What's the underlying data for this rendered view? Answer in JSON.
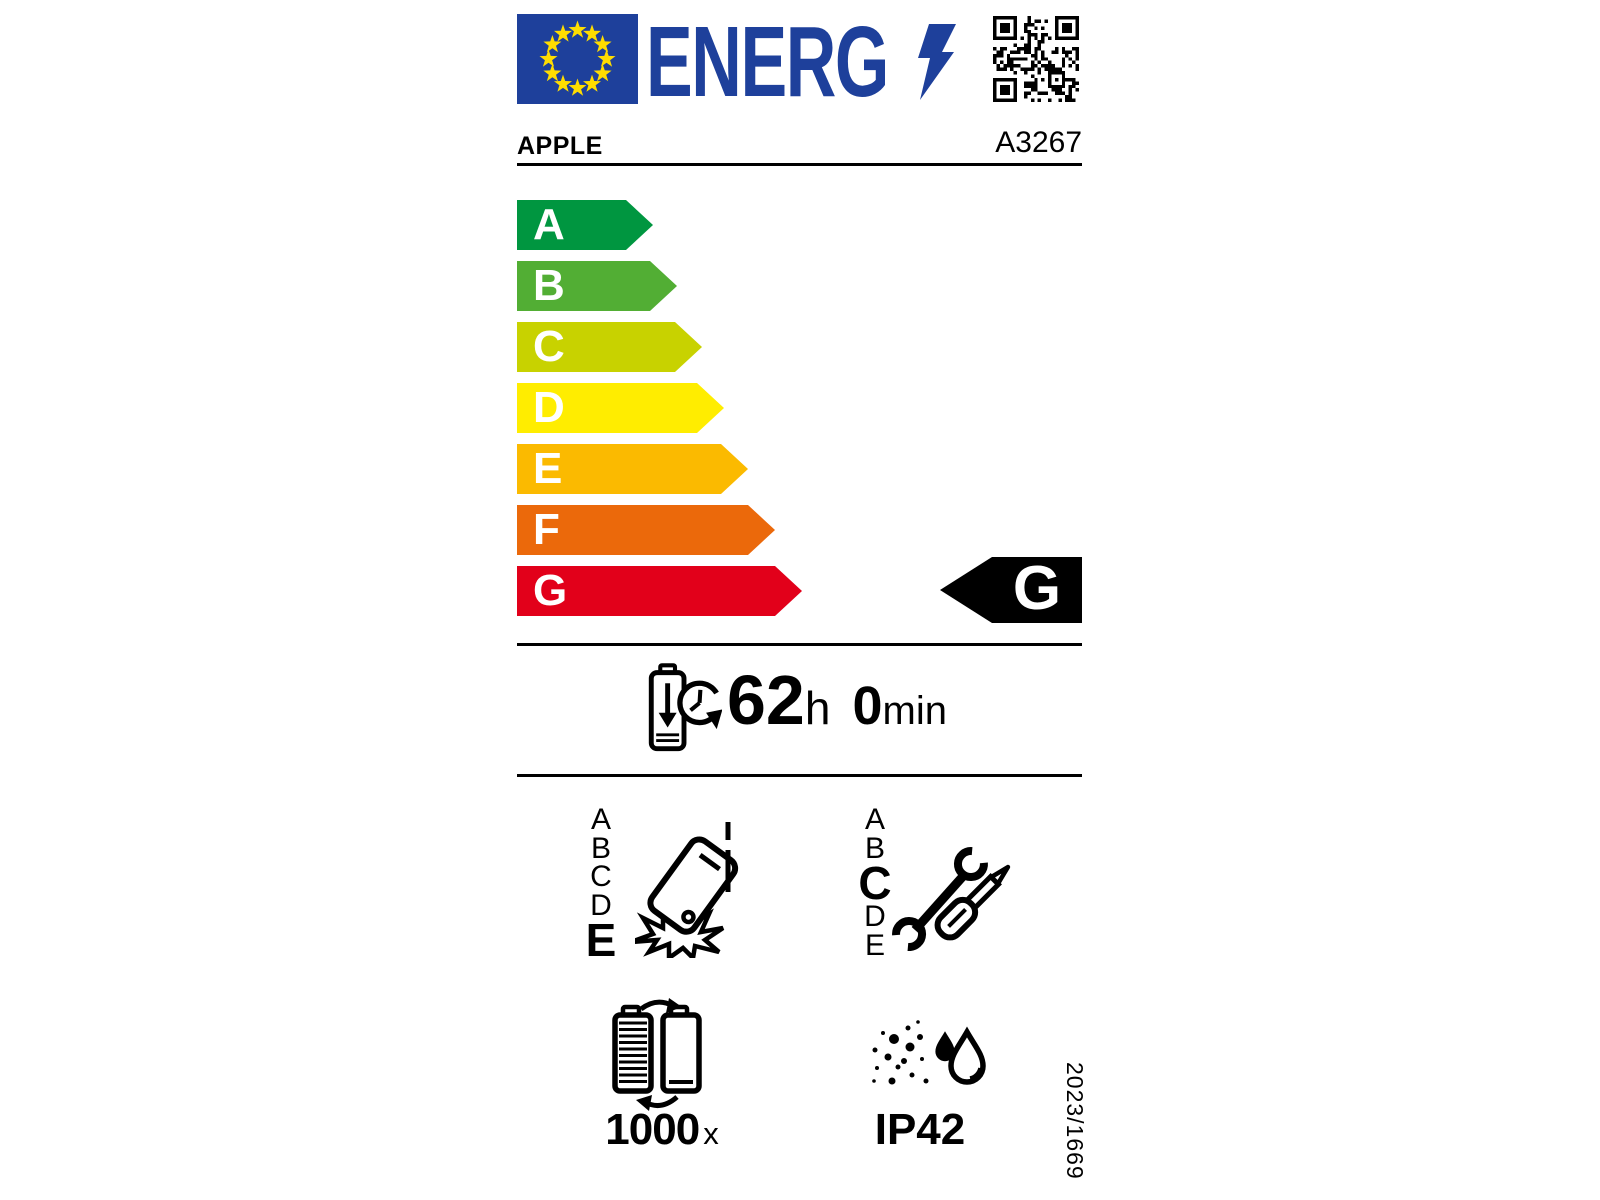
{
  "label": {
    "logo_text": "ENERG",
    "brand": "APPLE",
    "model": "A3267",
    "energy_scale": {
      "classes": [
        {
          "letter": "A",
          "color": "#009640"
        },
        {
          "letter": "B",
          "color": "#52AE34"
        },
        {
          "letter": "C",
          "color": "#C8D200"
        },
        {
          "letter": "D",
          "color": "#FFED00"
        },
        {
          "letter": "E",
          "color": "#FBBA00"
        },
        {
          "letter": "F",
          "color": "#EB690B"
        },
        {
          "letter": "G",
          "color": "#E2001A"
        }
      ],
      "rated_class": "G"
    },
    "battery_life": {
      "hours": "62",
      "hours_unit": "h",
      "minutes": "0",
      "minutes_unit": "min"
    },
    "drop_resistance": {
      "scale": [
        "A",
        "B",
        "C",
        "D",
        "E"
      ],
      "rated_class": "E"
    },
    "repairability": {
      "scale": [
        "A",
        "B",
        "C",
        "D",
        "E"
      ],
      "rated_class": "C"
    },
    "battery_endurance": {
      "cycles": "1000",
      "unit": "x"
    },
    "ingress_protection": {
      "rating": "IP42"
    },
    "regulation_reference": "2023/1669",
    "colors": {
      "eu_blue": "#1E409B",
      "star_yellow": "#FFDD00",
      "rated_arrow_black": "#000000"
    }
  }
}
